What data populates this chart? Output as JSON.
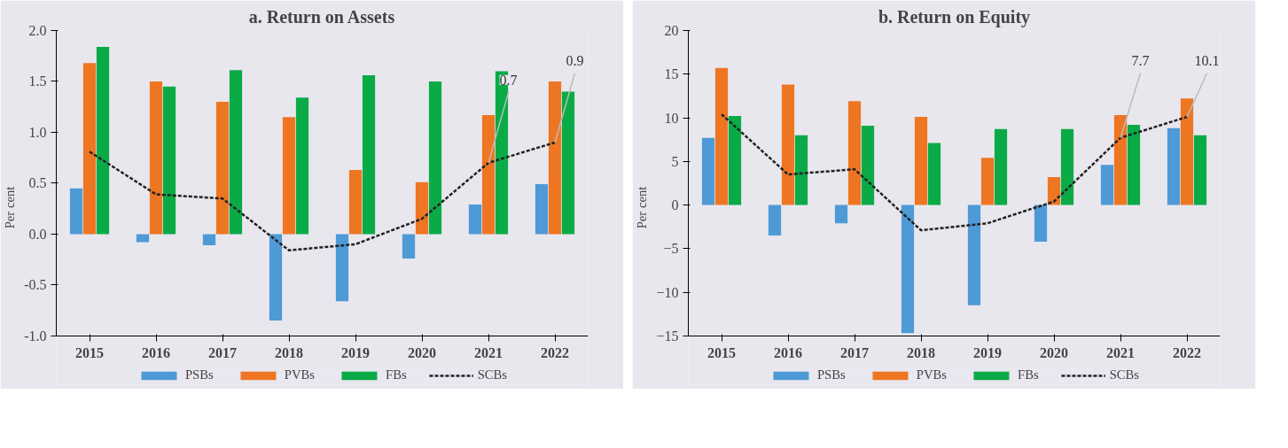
{
  "chart_data": [
    {
      "type": "bar",
      "title": "a. Return on Assets",
      "ylabel": "Per cent",
      "categories": [
        "2015",
        "2016",
        "2017",
        "2018",
        "2019",
        "2020",
        "2021",
        "2022"
      ],
      "series": [
        {
          "name": "PSBs",
          "color": "#4e9ad6",
          "values": [
            0.45,
            -0.08,
            -0.11,
            -0.85,
            -0.66,
            -0.24,
            0.29,
            0.49
          ]
        },
        {
          "name": "PVBs",
          "color": "#ee7623",
          "values": [
            1.68,
            1.5,
            1.3,
            1.15,
            0.63,
            0.51,
            1.17,
            1.5
          ]
        },
        {
          "name": "FBs",
          "color": "#0aab47",
          "values": [
            1.84,
            1.45,
            1.61,
            1.34,
            1.56,
            1.5,
            1.6,
            1.4
          ]
        },
        {
          "name": "SCBs",
          "type": "line",
          "color": "#222222",
          "line_style": "dashed",
          "marker": "none",
          "values": [
            0.81,
            0.39,
            0.35,
            -0.16,
            -0.1,
            0.15,
            0.7,
            0.9
          ]
        }
      ],
      "ylim": [
        -1.0,
        2.0
      ],
      "yticks": [
        {
          "value": -1.0,
          "label": "-1.0"
        },
        {
          "value": -0.5,
          "label": "-0.5"
        },
        {
          "value": 0.0,
          "label": "0.0"
        },
        {
          "value": 0.5,
          "label": "0.5"
        },
        {
          "value": 1.0,
          "label": "1.0"
        },
        {
          "value": 1.5,
          "label": "1.5"
        },
        {
          "value": 2.0,
          "label": "2.0"
        }
      ],
      "annotations": [
        {
          "text": "0.7",
          "x": "2021",
          "y": 0.7
        },
        {
          "text": "0.9",
          "x": "2022",
          "y": 0.9
        }
      ],
      "legend": "bottom",
      "grid": false
    },
    {
      "type": "bar",
      "title": "b. Return on Equity",
      "ylabel": "Per cent",
      "categories": [
        "2015",
        "2016",
        "2017",
        "2018",
        "2019",
        "2020",
        "2021",
        "2022"
      ],
      "series": [
        {
          "name": "PSBs",
          "color": "#4e9ad6",
          "values": [
            7.7,
            -3.5,
            -2.1,
            -14.7,
            -11.5,
            -4.2,
            4.6,
            8.8
          ]
        },
        {
          "name": "PVBs",
          "color": "#ee7623",
          "values": [
            15.7,
            13.8,
            11.9,
            10.1,
            5.4,
            3.2,
            10.3,
            12.2
          ]
        },
        {
          "name": "FBs",
          "color": "#0aab47",
          "values": [
            10.2,
            8.0,
            9.1,
            7.1,
            8.7,
            8.7,
            9.2,
            8.0
          ]
        },
        {
          "name": "SCBs",
          "type": "line",
          "color": "#222222",
          "line_style": "dashed",
          "marker": "none",
          "values": [
            10.4,
            3.5,
            4.1,
            -2.9,
            -2.1,
            0.4,
            7.7,
            10.1
          ]
        }
      ],
      "ylim": [
        -15,
        20
      ],
      "yticks": [
        -15,
        -10,
        -5,
        0,
        5,
        10,
        15,
        20
      ],
      "annotations": [
        {
          "text": "7.7",
          "x": "2021",
          "y": 7.7
        },
        {
          "text": "10.1",
          "x": "2022",
          "y": 10.1
        }
      ],
      "legend": "bottom",
      "grid": false
    }
  ]
}
